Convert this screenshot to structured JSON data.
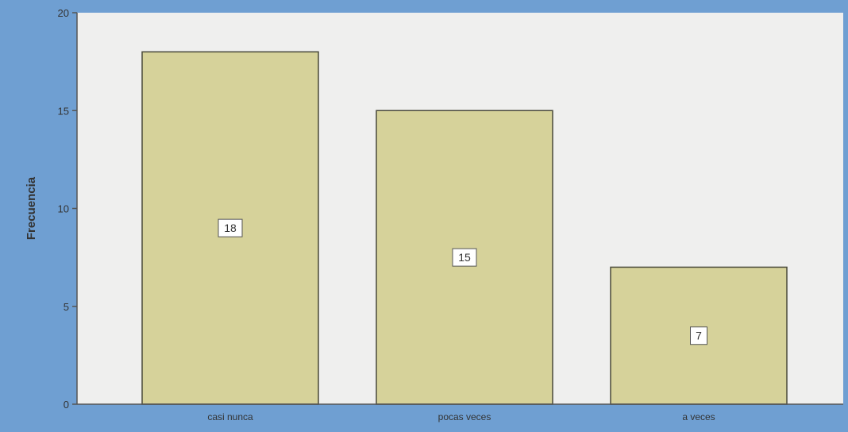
{
  "chart_data": {
    "type": "bar",
    "title": "",
    "xlabel": "",
    "ylabel": "Frecuencia",
    "categories": [
      "casi nunca",
      "pocas veces",
      "a veces"
    ],
    "values": [
      18,
      15,
      7
    ],
    "data_labels": [
      "18",
      "15",
      "7"
    ],
    "ylim": [
      0,
      20
    ],
    "yticks": [
      0,
      5,
      10,
      15,
      20
    ],
    "ytick_labels": [
      "0",
      "5",
      "10",
      "15",
      "20"
    ],
    "grid": false,
    "legend": "none"
  },
  "colors": {
    "frame": "#6f9fd2",
    "plot_background": "#efefee",
    "bar_fill": "#d6d29a",
    "bar_stroke": "#4a4a3a",
    "axis": "#555555",
    "label_box": "#ffffff",
    "text": "#333333"
  }
}
